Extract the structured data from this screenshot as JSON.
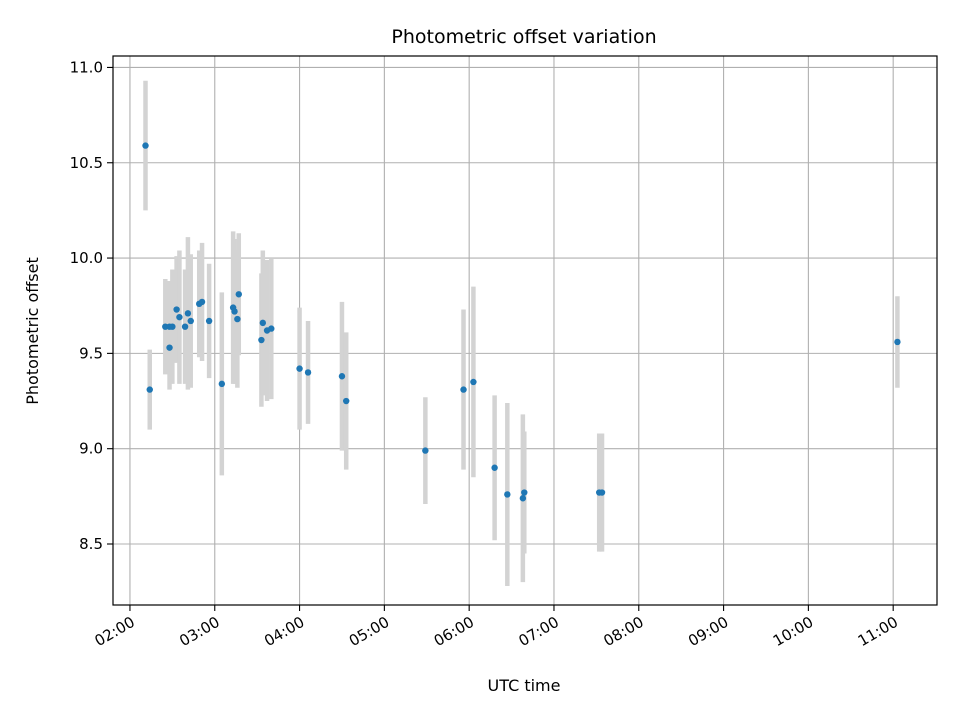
{
  "chart_data": {
    "type": "scatter",
    "title": "Photometric offset variation",
    "xlabel": "UTC time",
    "ylabel": "Photometric offset",
    "x_ticks": [
      "02:00",
      "03:00",
      "04:00",
      "05:00",
      "06:00",
      "07:00",
      "08:00",
      "09:00",
      "10:00",
      "11:00"
    ],
    "y_ticks": [
      "8.5",
      "9.0",
      "9.5",
      "10.0",
      "10.5",
      "11.0"
    ],
    "xlim": [
      "01:48",
      "11:31"
    ],
    "ylim": [
      8.18,
      11.06
    ],
    "grid": true,
    "legend": "none",
    "colors": {
      "points": "#1f77b4",
      "error_bars": "#d3d3d3",
      "grid": "#b0b0b0"
    },
    "points": [
      {
        "x": "02:11",
        "y": 10.59,
        "err": 0.34
      },
      {
        "x": "02:14",
        "y": 9.31,
        "err": 0.21
      },
      {
        "x": "02:25",
        "y": 9.64,
        "err": 0.25
      },
      {
        "x": "02:28",
        "y": 9.64,
        "err": 0.24
      },
      {
        "x": "02:28",
        "y": 9.53,
        "err": 0.22
      },
      {
        "x": "02:30",
        "y": 9.64,
        "err": 0.3
      },
      {
        "x": "02:33",
        "y": 9.73,
        "err": 0.28
      },
      {
        "x": "02:35",
        "y": 9.69,
        "err": 0.35
      },
      {
        "x": "02:39",
        "y": 9.64,
        "err": 0.3
      },
      {
        "x": "02:41",
        "y": 9.71,
        "err": 0.4
      },
      {
        "x": "02:43",
        "y": 9.67,
        "err": 0.35
      },
      {
        "x": "02:49",
        "y": 9.76,
        "err": 0.28
      },
      {
        "x": "02:51",
        "y": 9.77,
        "err": 0.31
      },
      {
        "x": "02:56",
        "y": 9.67,
        "err": 0.3
      },
      {
        "x": "03:05",
        "y": 9.34,
        "err": 0.48
      },
      {
        "x": "03:13",
        "y": 9.74,
        "err": 0.4
      },
      {
        "x": "03:14",
        "y": 9.72,
        "err": 0.38
      },
      {
        "x": "03:16",
        "y": 9.68,
        "err": 0.36
      },
      {
        "x": "03:17",
        "y": 9.81,
        "err": 0.32
      },
      {
        "x": "03:33",
        "y": 9.57,
        "err": 0.35
      },
      {
        "x": "03:34",
        "y": 9.66,
        "err": 0.38
      },
      {
        "x": "03:37",
        "y": 9.62,
        "err": 0.37
      },
      {
        "x": "03:40",
        "y": 9.63,
        "err": 0.37
      },
      {
        "x": "04:00",
        "y": 9.42,
        "err": 0.32
      },
      {
        "x": "04:06",
        "y": 9.4,
        "err": 0.27
      },
      {
        "x": "04:30",
        "y": 9.38,
        "err": 0.39
      },
      {
        "x": "04:33",
        "y": 9.25,
        "err": 0.36
      },
      {
        "x": "05:29",
        "y": 8.99,
        "err": 0.28
      },
      {
        "x": "05:56",
        "y": 9.31,
        "err": 0.42
      },
      {
        "x": "06:03",
        "y": 9.35,
        "err": 0.5
      },
      {
        "x": "06:18",
        "y": 8.9,
        "err": 0.38
      },
      {
        "x": "06:27",
        "y": 8.76,
        "err": 0.48
      },
      {
        "x": "06:38",
        "y": 8.74,
        "err": 0.44
      },
      {
        "x": "06:39",
        "y": 8.77,
        "err": 0.32
      },
      {
        "x": "07:32",
        "y": 8.77,
        "err": 0.31
      },
      {
        "x": "07:34",
        "y": 8.77,
        "err": 0.31
      },
      {
        "x": "11:03",
        "y": 9.56,
        "err": 0.24
      }
    ]
  }
}
